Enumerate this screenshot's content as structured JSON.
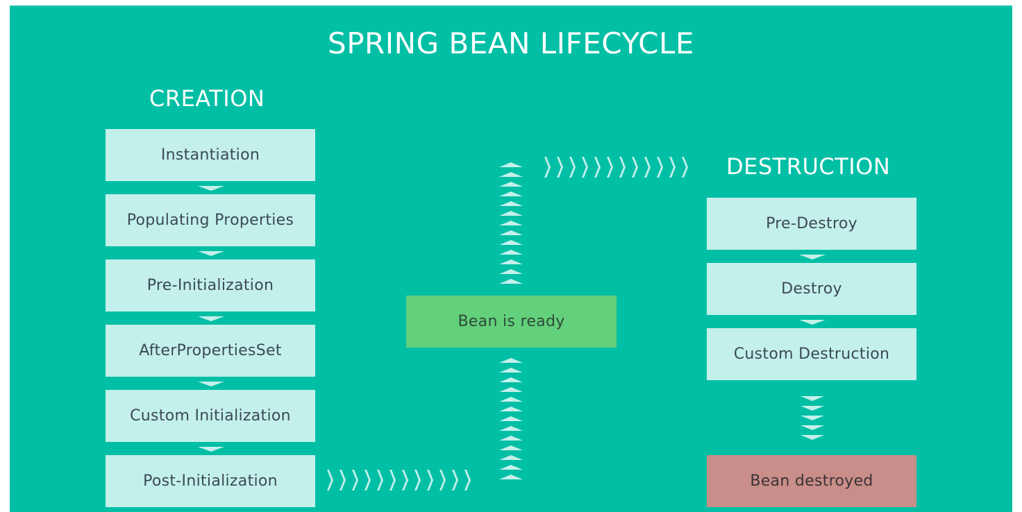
{
  "title": "SPRING BEAN LIFECYCLE",
  "creation": {
    "heading": "CREATION",
    "steps": [
      "Instantiation",
      "Populating Properties",
      "Pre-Initialization",
      "AfterPropertiesSet",
      "Custom Initialization",
      "Post-Initialization"
    ]
  },
  "ready": {
    "label": "Bean is ready"
  },
  "destruction": {
    "heading": "DESTRUCTION",
    "steps": [
      "Pre-Destroy",
      "Destroy",
      "Custom Destruction"
    ],
    "final": "Bean destroyed"
  },
  "colors": {
    "background": "#01bfa5",
    "step_box": "#c4f0eb",
    "ready_box": "#63d07b",
    "destroyed_box": "#c98e89",
    "text": "#3b4a55"
  }
}
